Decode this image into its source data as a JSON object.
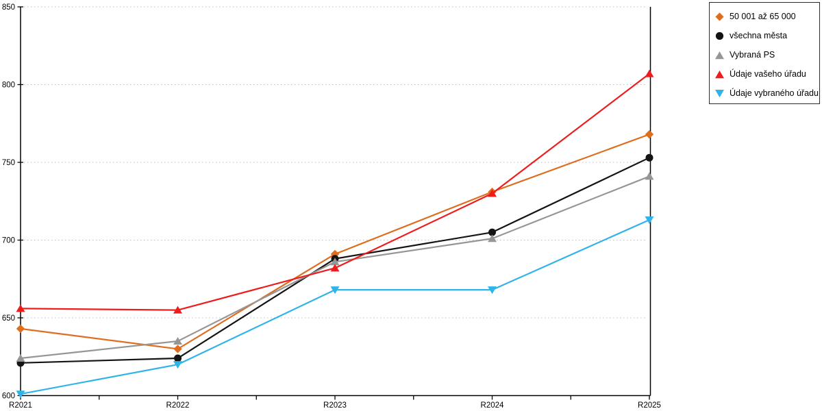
{
  "chart_data": {
    "type": "line",
    "title": "",
    "xlabel": "",
    "ylabel": "",
    "x_categories": [
      "R2021",
      "R2022",
      "R2023",
      "R2024",
      "R2025"
    ],
    "series": [
      {
        "name": "50 001 až 65 000",
        "color": "#df6d1e",
        "marker": "diamond",
        "values": [
          643,
          630,
          691,
          731,
          768
        ]
      },
      {
        "name": "všechna města",
        "color": "#141414",
        "marker": "circle",
        "values": [
          621,
          624,
          688,
          705,
          753
        ]
      },
      {
        "name": "Vybraná PS",
        "color": "#969696",
        "marker": "triangle-up",
        "values": [
          624,
          635,
          686,
          701,
          741
        ]
      },
      {
        "name": "Údaje vašeho úřadu",
        "color": "#ee1c1c",
        "marker": "triangle-up",
        "values": [
          656,
          655,
          682,
          730,
          807
        ]
      },
      {
        "name": "Údaje vybraného úřadu",
        "color": "#2fb4e9",
        "marker": "triangle-down",
        "values": [
          601,
          620,
          668,
          668,
          713
        ]
      }
    ],
    "ylim": [
      600,
      850
    ],
    "yticks": [
      600,
      650,
      700,
      750,
      800,
      850
    ],
    "y_tick_labels": [
      "600",
      "650",
      "700",
      "750",
      "800",
      "850"
    ],
    "grid": "horizontal-dotted",
    "legend_position": "top-right"
  },
  "colors": {
    "axis": "#000000",
    "grid": "#bdbdbd",
    "tick_label": "#000000",
    "background": "#ffffff",
    "legend_border": "#2b2b2b"
  }
}
